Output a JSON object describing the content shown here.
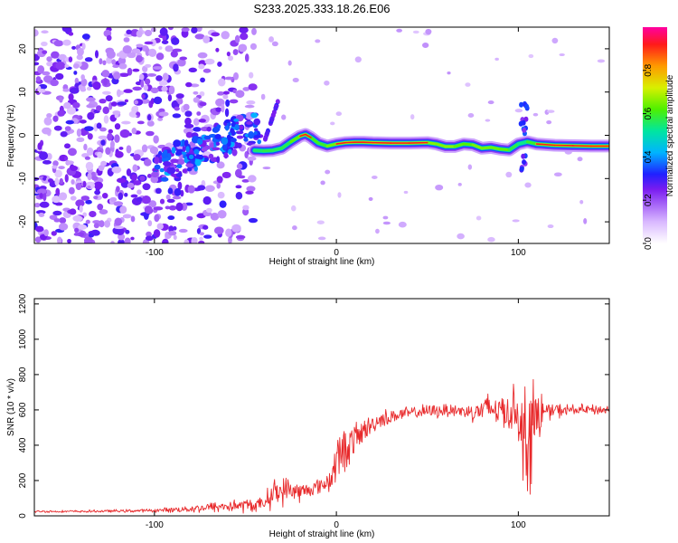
{
  "title": "S233.2025.333.18.26.E06",
  "colors": {
    "snr_line": "#e8292b",
    "axis": "#000000"
  },
  "chart_data": [
    {
      "type": "heatmap",
      "xlabel": "Height of straight line (km)",
      "ylabel": "Frequency (Hz)",
      "xlim": [
        -166,
        150
      ],
      "ylim": [
        -25,
        25
      ],
      "xticks": [
        -100,
        0,
        100
      ],
      "xtick_labels": [
        "-100",
        "0",
        "100"
      ],
      "yticks": [
        -20,
        -10,
        0,
        10,
        20
      ],
      "ytick_labels": [
        "-20",
        "-10",
        "0",
        "10",
        "20"
      ],
      "colorbar": {
        "label": "Normalized spectral amplitude",
        "range": [
          0.0,
          1.0
        ],
        "ticks": [
          0.0,
          0.2,
          0.4,
          0.6,
          0.8
        ],
        "tick_labels": [
          "0.0",
          "0.2",
          "0.4",
          "0.6",
          "0.8"
        ]
      },
      "ridge": {
        "x": [
          -45,
          -40,
          -35,
          -30,
          -25,
          -20,
          -17,
          -14,
          -10,
          -5,
          0,
          5,
          10,
          15,
          20,
          30,
          40,
          50,
          55,
          60,
          65,
          70,
          75,
          80,
          85,
          90,
          95,
          100,
          105,
          110,
          120,
          130,
          140,
          150
        ],
        "y": [
          -3.5,
          -3.6,
          -3.5,
          -3.0,
          -1.5,
          -0.2,
          0.2,
          -0.5,
          -1.8,
          -2.5,
          -2.0,
          -1.7,
          -1.6,
          -1.6,
          -1.7,
          -1.8,
          -1.8,
          -1.7,
          -2.0,
          -2.6,
          -2.6,
          -2.0,
          -2.2,
          -3.0,
          -2.8,
          -3.2,
          -3.4,
          -2.0,
          -1.5,
          -2.0,
          -2.3,
          -2.4,
          -2.5,
          -2.5
        ],
        "amp": [
          0.4,
          0.45,
          0.5,
          0.4,
          0.55,
          0.8,
          0.9,
          0.7,
          0.5,
          0.6,
          0.85,
          0.9,
          0.88,
          0.85,
          0.9,
          0.95,
          0.92,
          0.85,
          0.7,
          0.8,
          0.75,
          0.6,
          0.7,
          0.8,
          0.65,
          0.75,
          0.6,
          0.4,
          0.3,
          0.8,
          0.85,
          0.85,
          0.85,
          0.85
        ]
      }
    },
    {
      "type": "line",
      "xlabel": "Height of straight line (km)",
      "ylabel": "SNR (10 * v/v)",
      "xlim": [
        -166,
        150
      ],
      "ylim": [
        0,
        1230
      ],
      "xticks": [
        -100,
        0,
        100
      ],
      "xtick_labels": [
        "-100",
        "0",
        "100"
      ],
      "yticks": [
        0,
        200,
        400,
        600,
        800,
        1000,
        1200
      ],
      "ytick_labels": [
        "0",
        "200",
        "400",
        "600",
        "800",
        "1000",
        "1200"
      ],
      "series": [
        {
          "name": "SNR",
          "x": [
            -166,
            -140,
            -100,
            -80,
            -60,
            -45,
            -40,
            -35,
            -30,
            -25,
            -20,
            -15,
            -10,
            -5,
            -3,
            0,
            5,
            10,
            15,
            20,
            25,
            30,
            35,
            40,
            45,
            50,
            55,
            60,
            65,
            70,
            75,
            80,
            85,
            90,
            95,
            100,
            103,
            106,
            108,
            110,
            115,
            120,
            130,
            140,
            150
          ],
          "y": [
            25,
            25,
            30,
            40,
            55,
            60,
            70,
            130,
            140,
            150,
            130,
            150,
            165,
            190,
            210,
            320,
            380,
            430,
            480,
            520,
            550,
            560,
            575,
            580,
            590,
            590,
            595,
            600,
            600,
            590,
            590,
            600,
            610,
            600,
            595,
            600,
            400,
            620,
            400,
            580,
            590,
            595,
            600,
            600,
            600
          ],
          "spread": [
            8,
            8,
            12,
            25,
            45,
            50,
            40,
            110,
            100,
            80,
            70,
            55,
            50,
            80,
            90,
            170,
            140,
            120,
            90,
            60,
            60,
            55,
            45,
            45,
            45,
            45,
            50,
            50,
            50,
            55,
            65,
            85,
            130,
            110,
            160,
            180,
            300,
            620,
            500,
            220,
            70,
            50,
            40,
            35,
            35
          ]
        }
      ]
    }
  ]
}
